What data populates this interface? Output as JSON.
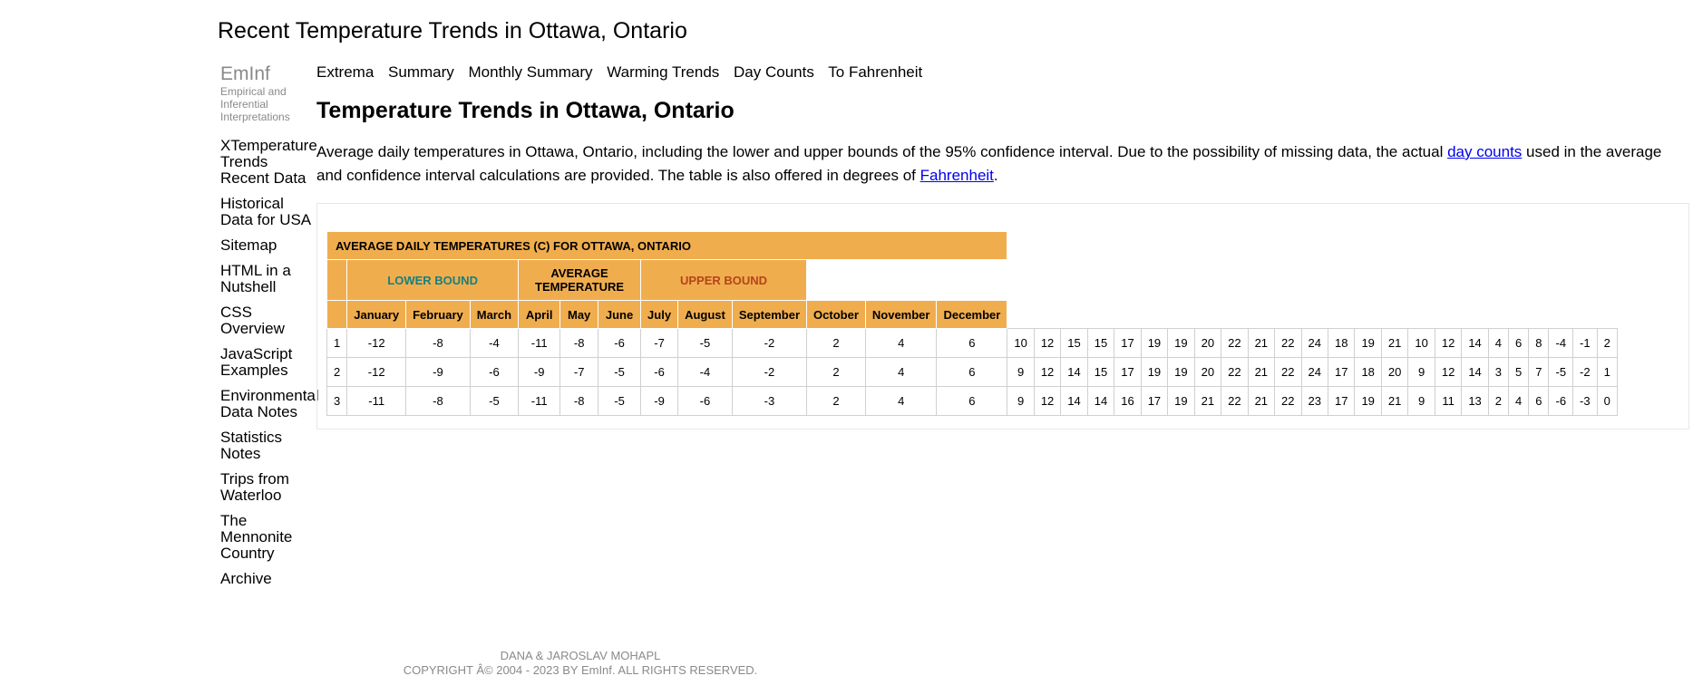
{
  "site_title": "Recent Temperature Trends in Ottawa, Ontario",
  "brand": {
    "name": "EmInf",
    "tagline_lines": [
      "Empirical and",
      "Inferential",
      "Interpretations"
    ]
  },
  "sidebar_nav": [
    {
      "label": "XTemperature Trends"
    },
    {
      "label": "Recent Data"
    },
    {
      "label": "Historical Data for USA"
    },
    {
      "label": "Sitemap"
    },
    {
      "label": "HTML in a Nutshell"
    },
    {
      "label": "CSS Overview"
    },
    {
      "label": "JavaScript Examples"
    },
    {
      "label": "Environmental Data Notes"
    },
    {
      "label": "Statistics Notes"
    },
    {
      "label": "Trips from Waterloo"
    },
    {
      "label": "The Mennonite Country"
    },
    {
      "label": "Archive"
    }
  ],
  "top_nav": [
    {
      "label": "Extrema"
    },
    {
      "label": "Summary"
    },
    {
      "label": "Monthly Summary"
    },
    {
      "label": "Warming Trends"
    },
    {
      "label": "Day Counts"
    },
    {
      "label": "To Fahrenheit"
    }
  ],
  "page_heading": "Temperature Trends in Ottawa, Ontario",
  "intro": {
    "text_before": "Average daily temperatures in Ottawa, Ontario, including the lower and upper bounds of the 95% confidence interval. Due to the possibility of missing data, the actual ",
    "link_day_counts": "day counts",
    "text_middle": " used in the average and confidence interval calculations are provided. The table is also offered in degrees of ",
    "link_fahrenheit": "Fahrenheit",
    "text_after": "."
  },
  "table": {
    "title": "AVERAGE DAILY TEMPERATURES (C) FOR OTTAWA, ONTARIO",
    "groups": {
      "lower": "LOWER BOUND",
      "average": "AVERAGE TEMPERATURE",
      "upper": "UPPER BOUND"
    },
    "group_colors": {
      "lower": "#17807d",
      "upper": "#b5441a",
      "header_bg": "#f0ad4e"
    },
    "months": [
      "January",
      "February",
      "March",
      "April",
      "May",
      "June",
      "July",
      "August",
      "September",
      "October",
      "November",
      "December"
    ],
    "rows": [
      {
        "day": "1",
        "values": [
          "-12",
          "-8",
          "-4",
          "-11",
          "-8",
          "-6",
          "-7",
          "-5",
          "-2",
          "2",
          "4",
          "6",
          "10",
          "12",
          "15",
          "15",
          "17",
          "19",
          "19",
          "20",
          "22",
          "21",
          "22",
          "24",
          "18",
          "19",
          "21",
          "10",
          "12",
          "14",
          "4",
          "6",
          "8",
          "-4",
          "-1",
          "2"
        ]
      },
      {
        "day": "2",
        "values": [
          "-12",
          "-9",
          "-6",
          "-9",
          "-7",
          "-5",
          "-6",
          "-4",
          "-2",
          "2",
          "4",
          "6",
          "9",
          "12",
          "14",
          "15",
          "17",
          "19",
          "19",
          "20",
          "22",
          "21",
          "22",
          "24",
          "17",
          "18",
          "20",
          "9",
          "12",
          "14",
          "3",
          "5",
          "7",
          "-5",
          "-2",
          "1"
        ]
      },
      {
        "day": "3",
        "values": [
          "-11",
          "-8",
          "-5",
          "-11",
          "-8",
          "-5",
          "-9",
          "-6",
          "-3",
          "2",
          "4",
          "6",
          "9",
          "12",
          "14",
          "14",
          "16",
          "17",
          "19",
          "21",
          "22",
          "21",
          "22",
          "23",
          "17",
          "19",
          "21",
          "9",
          "11",
          "13",
          "2",
          "4",
          "6",
          "-6",
          "-3",
          "0"
        ]
      }
    ]
  },
  "footer": {
    "line1": "DANA & JAROSLAV MOHAPL",
    "line2": "COPYRIGHT Â© 2004 - 2023 BY EmInf. ALL RIGHTS RESERVED."
  }
}
